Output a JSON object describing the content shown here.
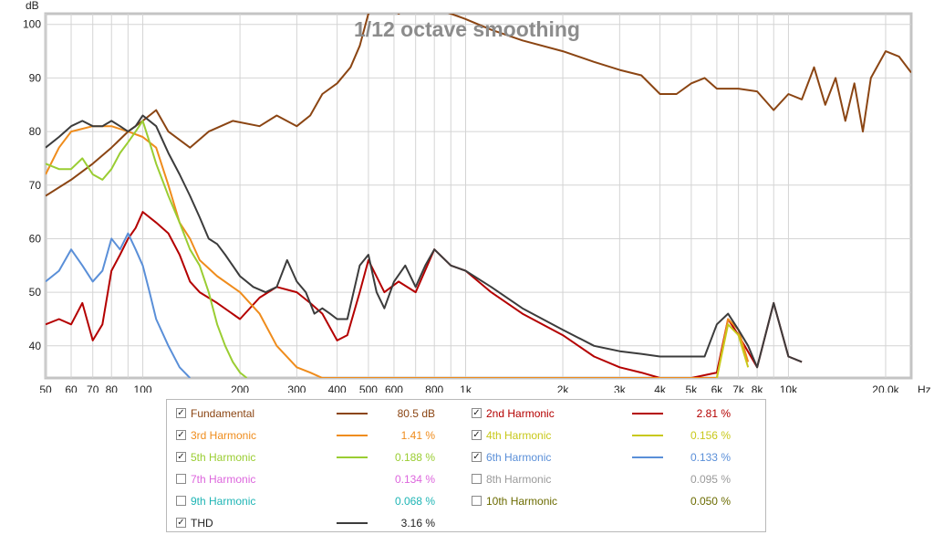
{
  "chart_data": {
    "type": "line",
    "title": "1/12 octave smoothing",
    "ylabel": "dB",
    "xunit": "Hz",
    "xscale": "log",
    "xlim": [
      50,
      24000
    ],
    "ylim": [
      34,
      102
    ],
    "grid": true,
    "x_ticks": [
      {
        "v": 50,
        "label": "50"
      },
      {
        "v": 60,
        "label": "60"
      },
      {
        "v": 70,
        "label": "70"
      },
      {
        "v": 80,
        "label": "80"
      },
      {
        "v": 100,
        "label": "100"
      },
      {
        "v": 200,
        "label": "200"
      },
      {
        "v": 300,
        "label": "300"
      },
      {
        "v": 400,
        "label": "400"
      },
      {
        "v": 500,
        "label": "500"
      },
      {
        "v": 600,
        "label": "600"
      },
      {
        "v": 800,
        "label": "800"
      },
      {
        "v": 1000,
        "label": "1k"
      },
      {
        "v": 2000,
        "label": "2k"
      },
      {
        "v": 3000,
        "label": "3k"
      },
      {
        "v": 4000,
        "label": "4k"
      },
      {
        "v": 5000,
        "label": "5k"
      },
      {
        "v": 6000,
        "label": "6k"
      },
      {
        "v": 7000,
        "label": "7k"
      },
      {
        "v": 8000,
        "label": "8k"
      },
      {
        "v": 10000,
        "label": "10k"
      },
      {
        "v": 20000,
        "label": "20.0k"
      }
    ],
    "x_minor": [
      90,
      700,
      900,
      9000
    ],
    "y_ticks": [
      40,
      50,
      60,
      70,
      80,
      90,
      100
    ],
    "series": [
      {
        "name": "Fundamental",
        "color": "#8b4513",
        "value": "80.5 dB",
        "checked": true,
        "points": [
          [
            50,
            68
          ],
          [
            60,
            71
          ],
          [
            70,
            74
          ],
          [
            80,
            77
          ],
          [
            90,
            80
          ],
          [
            100,
            82
          ],
          [
            110,
            84
          ],
          [
            120,
            80
          ],
          [
            140,
            77
          ],
          [
            160,
            80
          ],
          [
            190,
            82
          ],
          [
            230,
            81
          ],
          [
            260,
            83
          ],
          [
            300,
            81
          ],
          [
            330,
            83
          ],
          [
            360,
            87
          ],
          [
            400,
            89
          ],
          [
            440,
            92
          ],
          [
            470,
            96
          ],
          [
            500,
            102
          ],
          [
            560,
            104
          ],
          [
            620,
            102
          ],
          [
            700,
            104
          ],
          [
            800,
            103
          ],
          [
            900,
            102
          ],
          [
            1000,
            101
          ],
          [
            1200,
            99
          ],
          [
            1500,
            97
          ],
          [
            2000,
            95
          ],
          [
            2500,
            93
          ],
          [
            3000,
            91.5
          ],
          [
            3500,
            90.5
          ],
          [
            4000,
            87
          ],
          [
            4500,
            87
          ],
          [
            5000,
            89
          ],
          [
            5500,
            90
          ],
          [
            6000,
            88
          ],
          [
            7000,
            88
          ],
          [
            8000,
            87.5
          ],
          [
            9000,
            84
          ],
          [
            10000,
            87
          ],
          [
            11000,
            86
          ],
          [
            12000,
            92
          ],
          [
            13000,
            85
          ],
          [
            14000,
            90
          ],
          [
            15000,
            82
          ],
          [
            16000,
            89
          ],
          [
            17000,
            80
          ],
          [
            18000,
            90
          ],
          [
            20000,
            95
          ],
          [
            22000,
            94
          ],
          [
            24000,
            91
          ]
        ]
      },
      {
        "name": "2nd Harmonic",
        "color": "#b40000",
        "value": "2.81 %",
        "checked": true,
        "points": [
          [
            50,
            44
          ],
          [
            55,
            45
          ],
          [
            60,
            44
          ],
          [
            65,
            48
          ],
          [
            70,
            41
          ],
          [
            75,
            44
          ],
          [
            80,
            54
          ],
          [
            85,
            57
          ],
          [
            90,
            60
          ],
          [
            95,
            62
          ],
          [
            100,
            65
          ],
          [
            110,
            63
          ],
          [
            120,
            61
          ],
          [
            130,
            57
          ],
          [
            140,
            52
          ],
          [
            150,
            50
          ],
          [
            170,
            48
          ],
          [
            200,
            45
          ],
          [
            230,
            49
          ],
          [
            260,
            51
          ],
          [
            300,
            50
          ],
          [
            330,
            48
          ],
          [
            360,
            46
          ],
          [
            400,
            41
          ],
          [
            430,
            42
          ],
          [
            470,
            50
          ],
          [
            500,
            56
          ],
          [
            560,
            50
          ],
          [
            620,
            52
          ],
          [
            700,
            50
          ],
          [
            800,
            58
          ],
          [
            900,
            55
          ],
          [
            1000,
            54
          ],
          [
            1200,
            50
          ],
          [
            1500,
            46
          ],
          [
            2000,
            42
          ],
          [
            2500,
            38
          ],
          [
            3000,
            36
          ],
          [
            3500,
            35
          ],
          [
            4000,
            34
          ],
          [
            5000,
            34
          ],
          [
            6000,
            35
          ],
          [
            6500,
            45
          ],
          [
            7000,
            42
          ],
          [
            8000,
            36
          ],
          [
            9000,
            48
          ],
          [
            10000,
            38
          ],
          [
            11000,
            37
          ]
        ]
      },
      {
        "name": "3rd Harmonic",
        "color": "#ef8c1c",
        "value": "1.41 %",
        "checked": true,
        "points": [
          [
            50,
            72
          ],
          [
            55,
            77
          ],
          [
            60,
            80
          ],
          [
            70,
            81
          ],
          [
            80,
            81
          ],
          [
            90,
            80
          ],
          [
            100,
            79
          ],
          [
            110,
            77
          ],
          [
            120,
            70
          ],
          [
            130,
            63
          ],
          [
            140,
            60
          ],
          [
            150,
            56
          ],
          [
            170,
            53
          ],
          [
            200,
            50
          ],
          [
            230,
            46
          ],
          [
            260,
            40
          ],
          [
            300,
            36
          ],
          [
            330,
            35
          ],
          [
            360,
            34
          ],
          [
            400,
            34
          ],
          [
            450,
            34
          ],
          [
            480,
            34
          ],
          [
            6000,
            34
          ],
          [
            6500,
            45
          ],
          [
            7000,
            43
          ],
          [
            7500,
            37
          ]
        ]
      },
      {
        "name": "4th Harmonic",
        "color": "#c8c81a",
        "value": "0.156 %",
        "checked": true,
        "points": [
          [
            6000,
            34
          ],
          [
            6500,
            44
          ],
          [
            7000,
            42
          ],
          [
            7500,
            36
          ]
        ]
      },
      {
        "name": "5th Harmonic",
        "color": "#9acd32",
        "value": "0.188 %",
        "checked": true,
        "points": [
          [
            50,
            74
          ],
          [
            55,
            73
          ],
          [
            60,
            73
          ],
          [
            65,
            75
          ],
          [
            70,
            72
          ],
          [
            75,
            71
          ],
          [
            80,
            73
          ],
          [
            85,
            76
          ],
          [
            90,
            78
          ],
          [
            95,
            80
          ],
          [
            100,
            82
          ],
          [
            105,
            78
          ],
          [
            110,
            74
          ],
          [
            120,
            68
          ],
          [
            130,
            63
          ],
          [
            140,
            58
          ],
          [
            150,
            55
          ],
          [
            160,
            50
          ],
          [
            170,
            44
          ],
          [
            180,
            40
          ],
          [
            190,
            37
          ],
          [
            200,
            35
          ],
          [
            210,
            34
          ]
        ]
      },
      {
        "name": "6th Harmonic",
        "color": "#5a8fd8",
        "value": "0.133 %",
        "checked": true,
        "points": [
          [
            50,
            52
          ],
          [
            55,
            54
          ],
          [
            60,
            58
          ],
          [
            65,
            55
          ],
          [
            70,
            52
          ],
          [
            75,
            54
          ],
          [
            80,
            60
          ],
          [
            85,
            58
          ],
          [
            90,
            61
          ],
          [
            95,
            58
          ],
          [
            100,
            55
          ],
          [
            105,
            50
          ],
          [
            110,
            45
          ],
          [
            120,
            40
          ],
          [
            130,
            36
          ],
          [
            140,
            34
          ]
        ]
      },
      {
        "name": "7th Harmonic",
        "color": "#dd66dd",
        "value": "0.134 %",
        "checked": false,
        "points": []
      },
      {
        "name": "8th Harmonic",
        "color": "#9a9a9a",
        "value": "0.095 %",
        "checked": false,
        "points": []
      },
      {
        "name": "9th Harmonic",
        "color": "#1fb5b5",
        "value": "0.068 %",
        "checked": false,
        "points": []
      },
      {
        "name": "10th Harmonic",
        "color": "#6b6b00",
        "value": "0.050 %",
        "checked": false,
        "points": []
      },
      {
        "name": "THD",
        "color": "#3c3c3c",
        "value": "3.16 %",
        "checked": true,
        "points": [
          [
            50,
            77
          ],
          [
            55,
            79
          ],
          [
            60,
            81
          ],
          [
            65,
            82
          ],
          [
            70,
            81
          ],
          [
            75,
            81
          ],
          [
            80,
            82
          ],
          [
            85,
            81
          ],
          [
            90,
            80
          ],
          [
            95,
            81
          ],
          [
            100,
            83
          ],
          [
            110,
            81
          ],
          [
            120,
            76
          ],
          [
            130,
            72
          ],
          [
            140,
            68
          ],
          [
            150,
            64
          ],
          [
            160,
            60
          ],
          [
            170,
            59
          ],
          [
            180,
            57
          ],
          [
            200,
            53
          ],
          [
            220,
            51
          ],
          [
            240,
            50
          ],
          [
            260,
            51
          ],
          [
            280,
            56
          ],
          [
            300,
            52
          ],
          [
            320,
            50
          ],
          [
            340,
            46
          ],
          [
            360,
            47
          ],
          [
            380,
            46
          ],
          [
            400,
            45
          ],
          [
            430,
            45
          ],
          [
            470,
            55
          ],
          [
            500,
            57
          ],
          [
            530,
            50
          ],
          [
            560,
            47
          ],
          [
            600,
            52
          ],
          [
            650,
            55
          ],
          [
            700,
            51
          ],
          [
            750,
            55
          ],
          [
            800,
            58
          ],
          [
            900,
            55
          ],
          [
            1000,
            54
          ],
          [
            1200,
            51
          ],
          [
            1500,
            47
          ],
          [
            2000,
            43
          ],
          [
            2500,
            40
          ],
          [
            3000,
            39
          ],
          [
            3500,
            38.5
          ],
          [
            4000,
            38
          ],
          [
            4500,
            38
          ],
          [
            5000,
            38
          ],
          [
            5500,
            38
          ],
          [
            6000,
            44
          ],
          [
            6500,
            46
          ],
          [
            7000,
            43
          ],
          [
            7500,
            40
          ],
          [
            8000,
            36
          ],
          [
            9000,
            48
          ],
          [
            10000,
            38
          ],
          [
            11000,
            37
          ]
        ]
      }
    ]
  }
}
